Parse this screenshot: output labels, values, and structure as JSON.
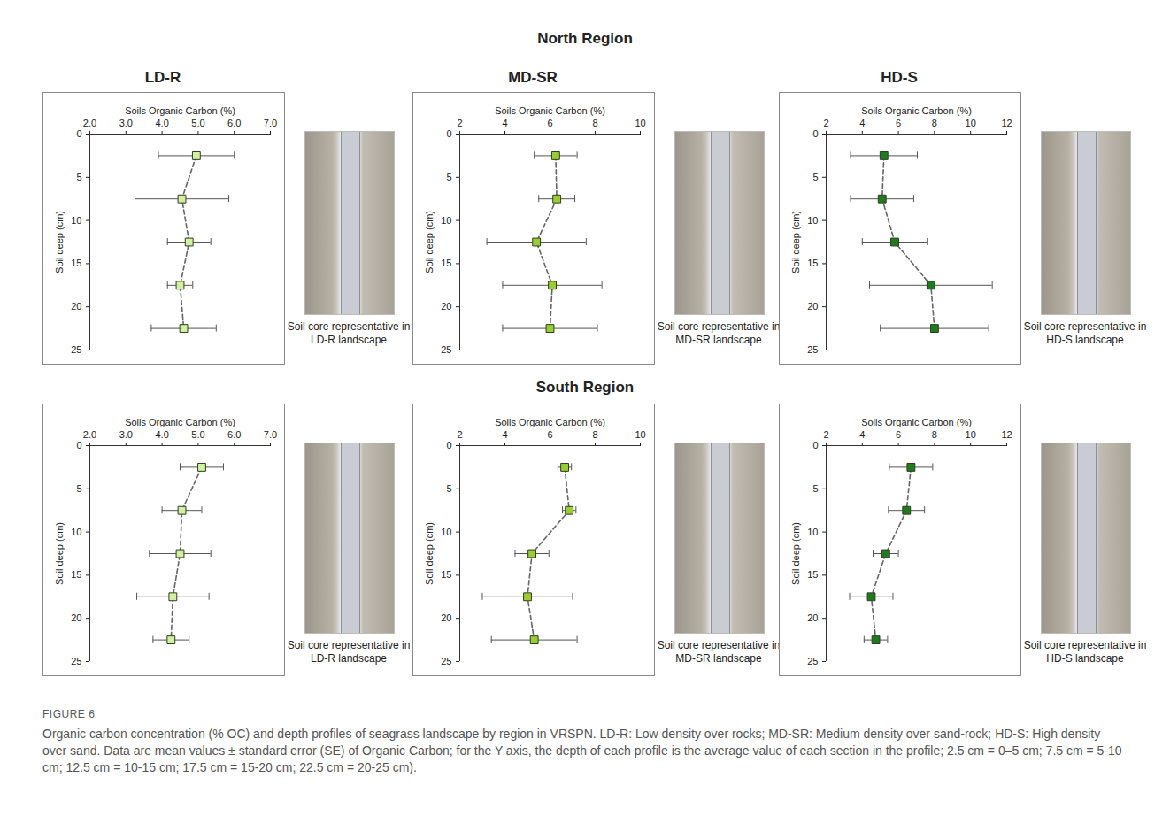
{
  "rows": [
    "North Region",
    "South Region"
  ],
  "columns": [
    "LD-R",
    "MD-SR",
    "HD-S"
  ],
  "chart_data": [
    {
      "type": "scatter",
      "x_label": "Soils Organic Carbon (%)",
      "y_label": "Soil deep (cm)",
      "xlim": [
        2,
        7
      ],
      "xticks": [
        2,
        3,
        4,
        5,
        6,
        7
      ],
      "ylim": [
        25,
        0
      ],
      "yticks": [
        0,
        5,
        10,
        15,
        20,
        25
      ],
      "y": [
        2.5,
        7.5,
        12.5,
        17.5,
        22.5
      ],
      "values": [
        4.95,
        4.55,
        4.75,
        4.5,
        4.6
      ],
      "errors": [
        1.05,
        1.3,
        0.6,
        0.35,
        0.9
      ],
      "color": "#d2f0a2",
      "marker": "square",
      "line_style": "dashed",
      "photo_caption": "Soil core representative in LD-R landscape"
    },
    {
      "type": "scatter",
      "x_label": "Soils Organic Carbon (%)",
      "y_label": "Soil deep (cm)",
      "xlim": [
        2,
        10
      ],
      "xticks": [
        2,
        4,
        6,
        8,
        10
      ],
      "ylim": [
        25,
        0
      ],
      "yticks": [
        0,
        5,
        10,
        15,
        20,
        25
      ],
      "y": [
        2.5,
        7.5,
        12.5,
        17.5,
        22.5
      ],
      "values": [
        6.25,
        6.3,
        5.4,
        6.1,
        6.0
      ],
      "errors": [
        0.95,
        0.8,
        2.2,
        2.2,
        2.1
      ],
      "color": "#9acd32",
      "marker": "square",
      "line_style": "dashed",
      "photo_caption": "Soil core representative in MD-SR landscape"
    },
    {
      "type": "scatter",
      "x_label": "Soils Organic Carbon (%)",
      "y_label": "Soil deep (cm)",
      "xlim": [
        2,
        12
      ],
      "xticks": [
        2,
        4,
        6,
        8,
        10,
        12
      ],
      "ylim": [
        25,
        0
      ],
      "yticks": [
        0,
        5,
        10,
        15,
        20,
        25
      ],
      "y": [
        2.5,
        7.5,
        12.5,
        17.5,
        22.5
      ],
      "values": [
        5.2,
        5.1,
        5.8,
        7.8,
        8.0
      ],
      "errors": [
        1.85,
        1.75,
        1.8,
        3.4,
        3.0
      ],
      "color": "#1e7b1e",
      "marker": "square",
      "line_style": "dashed",
      "photo_caption": "Soil core representative in HD-S landscape"
    },
    {
      "type": "scatter",
      "x_label": "Soils Organic Carbon (%)",
      "y_label": "Soil deep (cm)",
      "xlim": [
        2,
        7
      ],
      "xticks": [
        2,
        3,
        4,
        5,
        6,
        7
      ],
      "ylim": [
        25,
        0
      ],
      "yticks": [
        0,
        5,
        10,
        15,
        20,
        25
      ],
      "y": [
        2.5,
        7.5,
        12.5,
        17.5,
        22.5
      ],
      "values": [
        5.1,
        4.55,
        4.5,
        4.3,
        4.25
      ],
      "errors": [
        0.6,
        0.55,
        0.85,
        1.0,
        0.5
      ],
      "color": "#d2f0a2",
      "marker": "square",
      "line_style": "dashed",
      "photo_caption": "Soil core representative in LD-R landscape"
    },
    {
      "type": "scatter",
      "x_label": "Soils Organic Carbon (%)",
      "y_label": "Soil deep (cm)",
      "xlim": [
        2,
        10
      ],
      "xticks": [
        2,
        4,
        6,
        8,
        10
      ],
      "ylim": [
        25,
        0
      ],
      "yticks": [
        0,
        5,
        10,
        15,
        20,
        25
      ],
      "y": [
        2.5,
        7.5,
        12.5,
        17.5,
        22.5
      ],
      "values": [
        6.65,
        6.85,
        5.2,
        5.0,
        5.3
      ],
      "errors": [
        0.3,
        0.3,
        0.75,
        2.0,
        1.9
      ],
      "color": "#9acd32",
      "marker": "square",
      "line_style": "dashed",
      "photo_caption": "Soil core representative in MD-SR landscape"
    },
    {
      "type": "scatter",
      "x_label": "Soils Organic Carbon (%)",
      "y_label": "Soil deep (cm)",
      "xlim": [
        2,
        12
      ],
      "xticks": [
        2,
        4,
        6,
        8,
        10,
        12
      ],
      "ylim": [
        25,
        0
      ],
      "yticks": [
        0,
        5,
        10,
        15,
        20,
        25
      ],
      "y": [
        2.5,
        7.5,
        12.5,
        17.5,
        22.5
      ],
      "values": [
        6.7,
        6.45,
        5.3,
        4.5,
        4.75
      ],
      "errors": [
        1.2,
        1.0,
        0.7,
        1.2,
        0.65
      ],
      "color": "#1e7b1e",
      "marker": "square",
      "line_style": "dashed",
      "photo_caption": "Soil core representative in HD-S landscape"
    }
  ],
  "figure": {
    "label": "FIGURE 6",
    "caption": "Organic carbon concentration (% OC) and depth profiles of seagrass landscape by region in VRSPN. LD-R: Low density over rocks; MD-SR: Medium density over sand-rock; HD-S: High density over sand. Data are mean values ± standard error (SE) of Organic Carbon; for the Y axis, the depth of each profile is the average value of each section in the profile; 2.5 cm = 0–5 cm; 7.5 cm = 5-10 cm; 12.5 cm = 10-15 cm; 17.5 cm = 15-20 cm; 22.5 cm = 20-25 cm)."
  }
}
